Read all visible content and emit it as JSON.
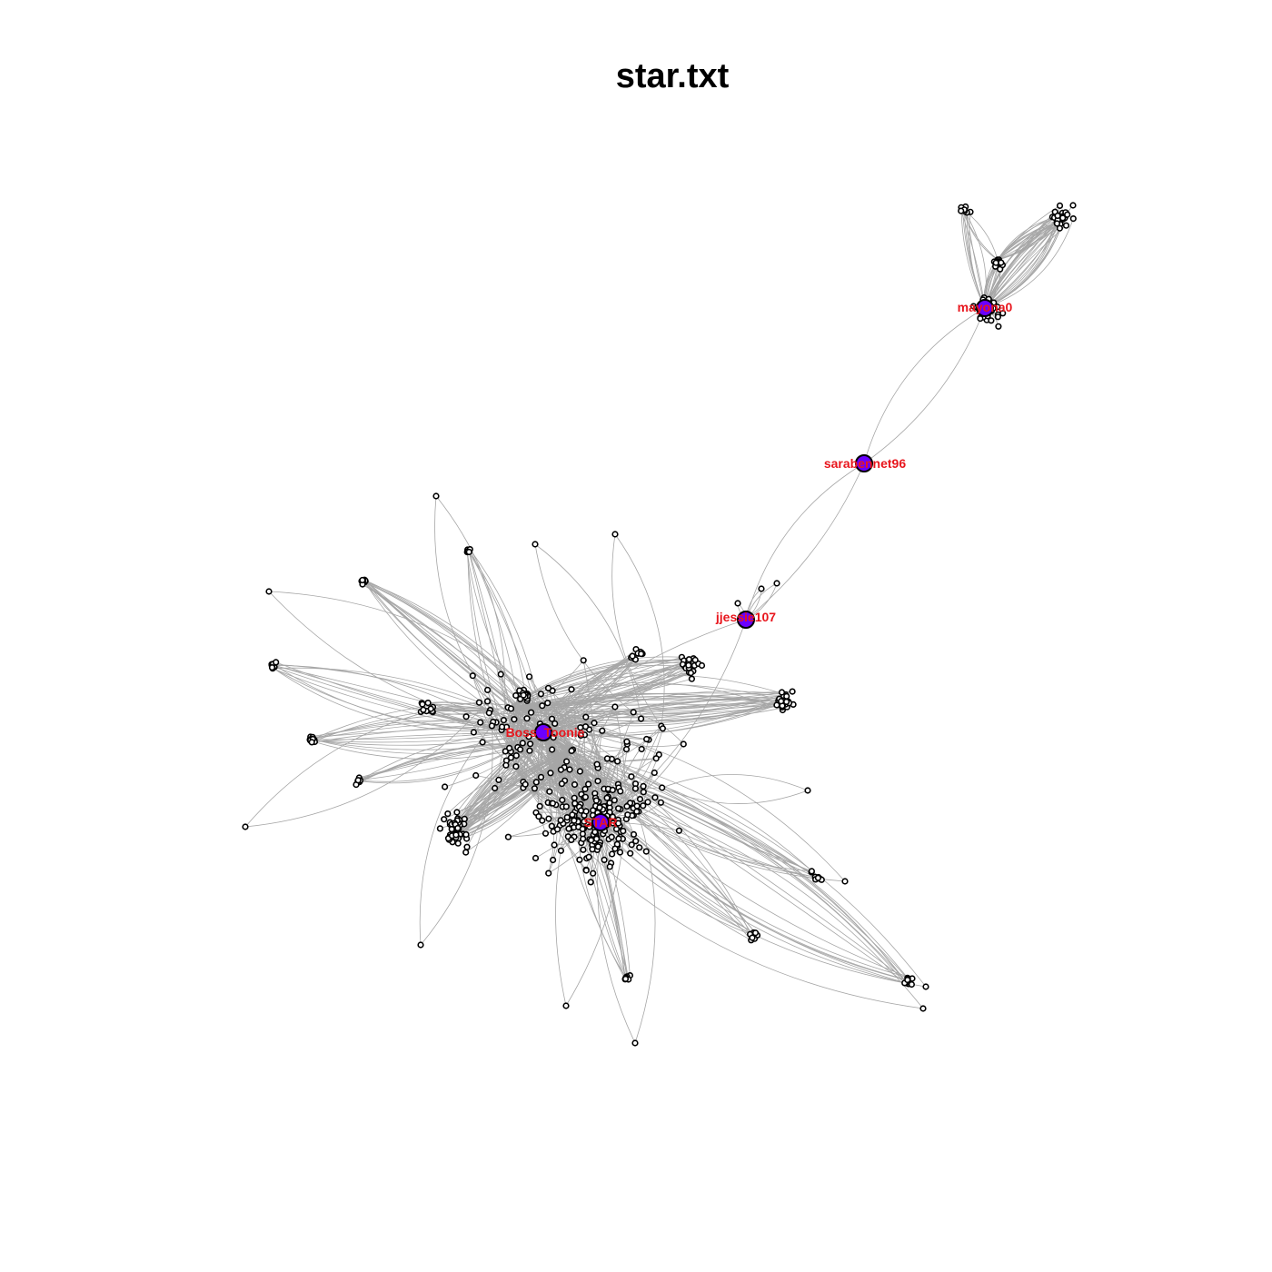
{
  "title": "star.txt",
  "colors": {
    "edge": "#a6a6a6",
    "node_fill": "#ffffff",
    "node_stroke": "#000000",
    "hub_fill": "#6a00ff",
    "hub_label": "#e8161d"
  },
  "hubs": [
    {
      "label": "STAR"
    },
    {
      "label": "Boss_Toonie"
    },
    {
      "label": "jjessie107"
    },
    {
      "label": "sarabennet96"
    },
    {
      "label": "mayona0"
    }
  ]
}
